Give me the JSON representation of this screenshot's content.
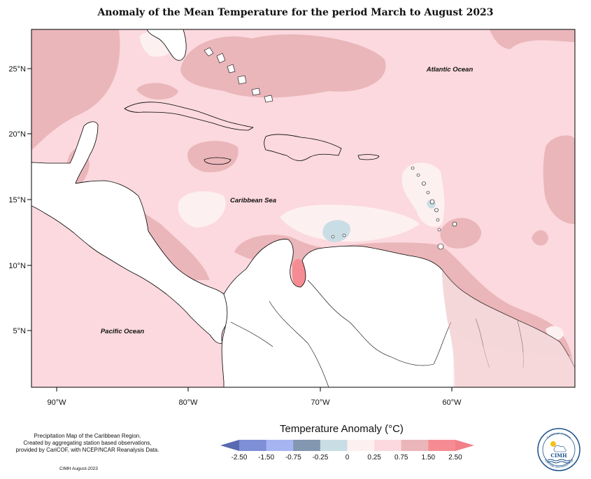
{
  "title": "Anomaly of the Mean Temperature for the period March to August 2023",
  "labels": {
    "atlantic": "Atlantic Ocean",
    "caribbean": "Caribbean Sea",
    "pacific": "Pacific Ocean"
  },
  "axes": {
    "lat_ticks": [
      "25°N",
      "20°N",
      "15°N",
      "10°N",
      "5°N"
    ],
    "lon_ticks": [
      "90°W",
      "80°W",
      "70°W",
      "60°W"
    ]
  },
  "credit": {
    "line1": "Precipitation Map of the Caribbean Region.",
    "line2": "Created by aggregating station based observations,",
    "line3": "provided by CariCOF, with NCEP/NCAR Reanalysis Data.",
    "footer": "CIMH August-2023"
  },
  "legend": {
    "title": "Temperature Anomaly (°C)",
    "ticks": [
      "-2.50",
      "-1.50",
      "-0.75",
      "-0.25",
      "0",
      "0.25",
      "0.75",
      "1.50",
      "2.50"
    ],
    "colors": [
      "#5a6ab0",
      "#7f8fd6",
      "#a6b5f2",
      "#8497b0",
      "#c9dde5",
      "#fdf0f0",
      "#fbd9de",
      "#eab6ba",
      "#f68c93",
      "#f28088"
    ]
  },
  "logo": {
    "text": "CIMH",
    "ring_top": "Caribbean Institute",
    "ring_bottom": "Hydrology and Meteorology"
  }
}
